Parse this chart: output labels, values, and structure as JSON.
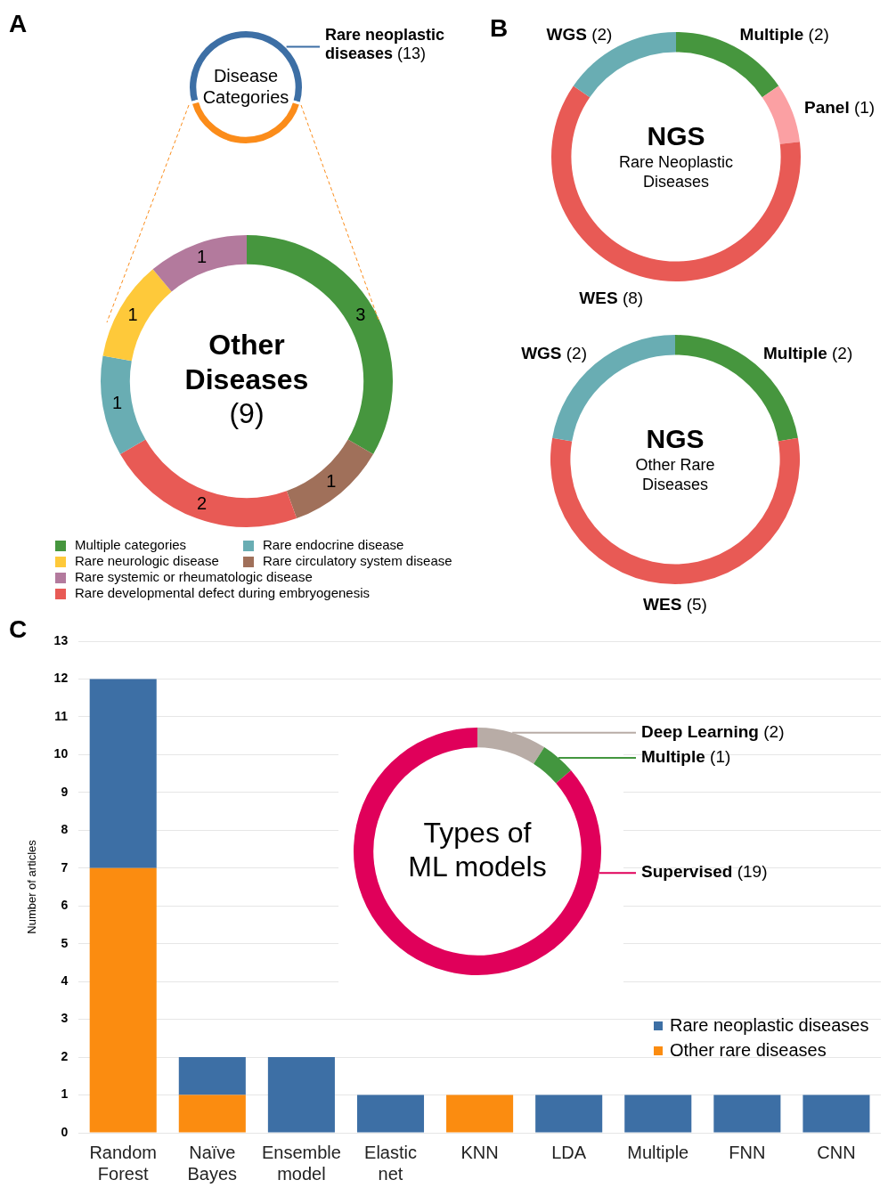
{
  "chart_data": [
    {
      "type": "donut",
      "title": "Disease Categories",
      "categories": [
        "Rare neoplastic diseases",
        null
      ],
      "values": [
        13,
        9
      ],
      "colors": [
        "#3d6fa5",
        "#fb8c1a"
      ],
      "value_labels": [
        "(13)",
        null
      ],
      "annotations": [
        "A"
      ]
    },
    {
      "type": "donut",
      "title": "Other Diseases",
      "subtitle": "(9)",
      "categories": [
        "Multiple categories",
        "Rare circulatory system disease",
        "Rare developmental defect during embryogenesis",
        "Rare endocrine disease",
        "Rare neurologic disease",
        "Rare systemic or rheumatologic disease"
      ],
      "values": [
        3,
        1,
        2,
        1,
        1,
        1
      ],
      "colors": [
        "#46963e",
        "#a0705a",
        "#e85a55",
        "#69adb3",
        "#fec93a",
        "#b37a9d"
      ],
      "data_labels": true,
      "legend": "bottom"
    },
    {
      "type": "donut",
      "title": "NGS",
      "subtitle": "Rare Neoplastic Diseases",
      "categories": [
        "Multiple",
        "Panel",
        "WES",
        "WGS"
      ],
      "values": [
        2,
        1,
        8,
        2
      ],
      "colors": [
        "#46963e",
        "#fba0a3",
        "#e85a55",
        "#69adb3"
      ],
      "value_labels": [
        "(2)",
        "(1)",
        "(8)",
        "(2)"
      ],
      "annotations": [
        "B"
      ]
    },
    {
      "type": "donut",
      "title": "NGS",
      "subtitle": "Other Rare Diseases",
      "categories": [
        "Multiple",
        "WES",
        "WGS"
      ],
      "values": [
        2,
        5,
        2
      ],
      "colors": [
        "#46963e",
        "#e85a55",
        "#69adb3"
      ],
      "value_labels": [
        "(2)",
        "(5)",
        "(2)"
      ]
    },
    {
      "type": "bar",
      "stacked": true,
      "categories": [
        "Random Forest",
        "Naïve Bayes",
        "Ensemble model",
        "Elastic net",
        "KNN",
        "LDA",
        "Multiple",
        "FNN",
        "CNN"
      ],
      "series": [
        {
          "name": "Other rare diseases",
          "color": "#fb8c10",
          "values": [
            7,
            1,
            0,
            0,
            1,
            0,
            0,
            0,
            0
          ]
        },
        {
          "name": "Rare neoplastic diseases",
          "color": "#3d6fa5",
          "values": [
            5,
            1,
            2,
            1,
            0,
            1,
            1,
            1,
            1
          ]
        }
      ],
      "ylabel": "Number of articles",
      "ylim": [
        0,
        13
      ],
      "yticks": [
        0,
        1,
        2,
        3,
        4,
        5,
        6,
        7,
        8,
        9,
        10,
        11,
        12,
        13
      ],
      "grid": "y",
      "legend": "right",
      "annotations": [
        "C"
      ]
    },
    {
      "type": "donut",
      "title": "Types of ML models",
      "categories": [
        "Deep Learning",
        "Multiple",
        "Supervised"
      ],
      "values": [
        2,
        1,
        19
      ],
      "colors": [
        "#b8aca6",
        "#43963f",
        "#e0005a"
      ],
      "value_labels": [
        "(2)",
        "(1)",
        "(19)"
      ]
    }
  ]
}
